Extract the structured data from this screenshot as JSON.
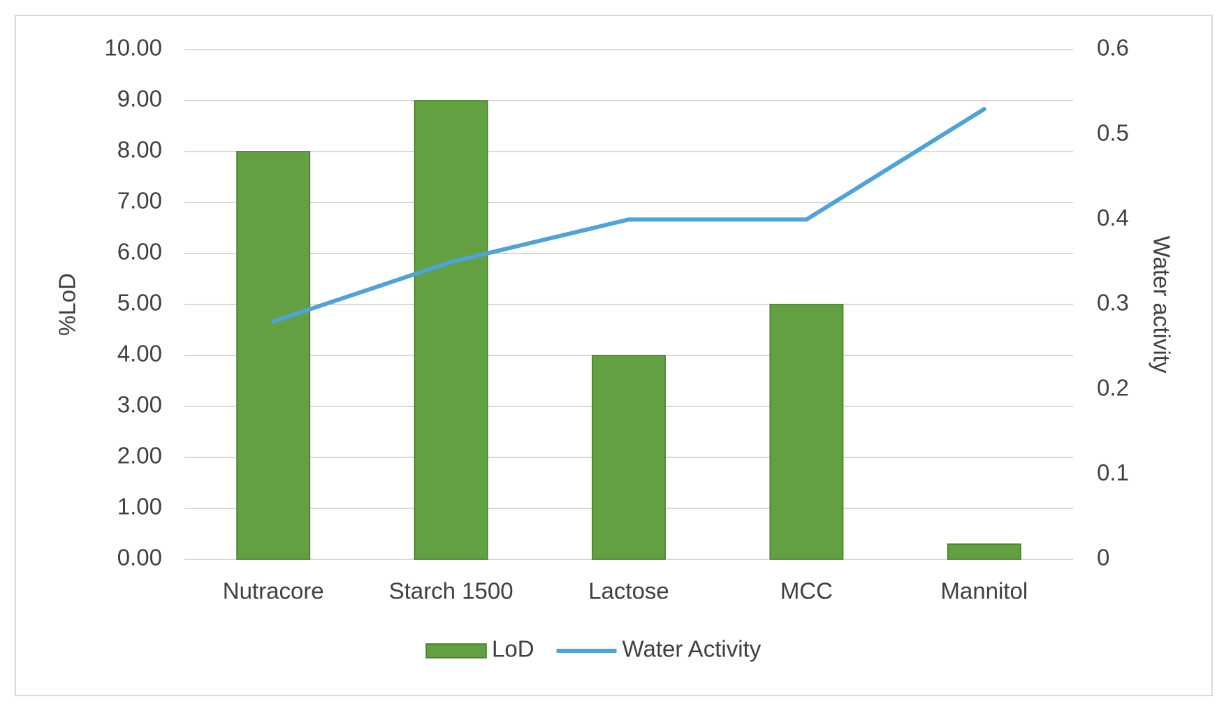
{
  "chart_data": {
    "type": "bar-line",
    "categories": [
      "Nutracore",
      "Starch 1500",
      "Lactose",
      "MCC",
      "Mannitol"
    ],
    "series": [
      {
        "name": "LoD",
        "type": "bar",
        "color": "#63a042",
        "values": [
          8,
          9,
          4,
          5,
          0.3
        ]
      },
      {
        "name": "Water Activity",
        "type": "line",
        "axis": "y2",
        "color": "#4ea3d9",
        "values": [
          0.28,
          0.35,
          0.4,
          0.4,
          0.53
        ]
      }
    ],
    "y_label": "%LoD",
    "y2_label": "Water activity",
    "ylim": [
      0,
      10
    ],
    "yticks": [
      {
        "value": 0,
        "label": "0.00"
      },
      {
        "value": 1,
        "label": "1.00"
      },
      {
        "value": 2,
        "label": "2.00"
      },
      {
        "value": 3,
        "label": "3.00"
      },
      {
        "value": 4,
        "label": "4.00"
      },
      {
        "value": 5,
        "label": "5.00"
      },
      {
        "value": 6,
        "label": "6.00"
      },
      {
        "value": 7,
        "label": "7.00"
      },
      {
        "value": 8,
        "label": "8.00"
      },
      {
        "value": 9,
        "label": "9.00"
      },
      {
        "value": 10,
        "label": "10.00"
      }
    ],
    "y2lim": [
      0,
      0.6
    ],
    "y2ticks": [
      0,
      0.1,
      0.2,
      0.3,
      0.4,
      0.5,
      0.6
    ],
    "grid": true,
    "legend": "bottom"
  }
}
